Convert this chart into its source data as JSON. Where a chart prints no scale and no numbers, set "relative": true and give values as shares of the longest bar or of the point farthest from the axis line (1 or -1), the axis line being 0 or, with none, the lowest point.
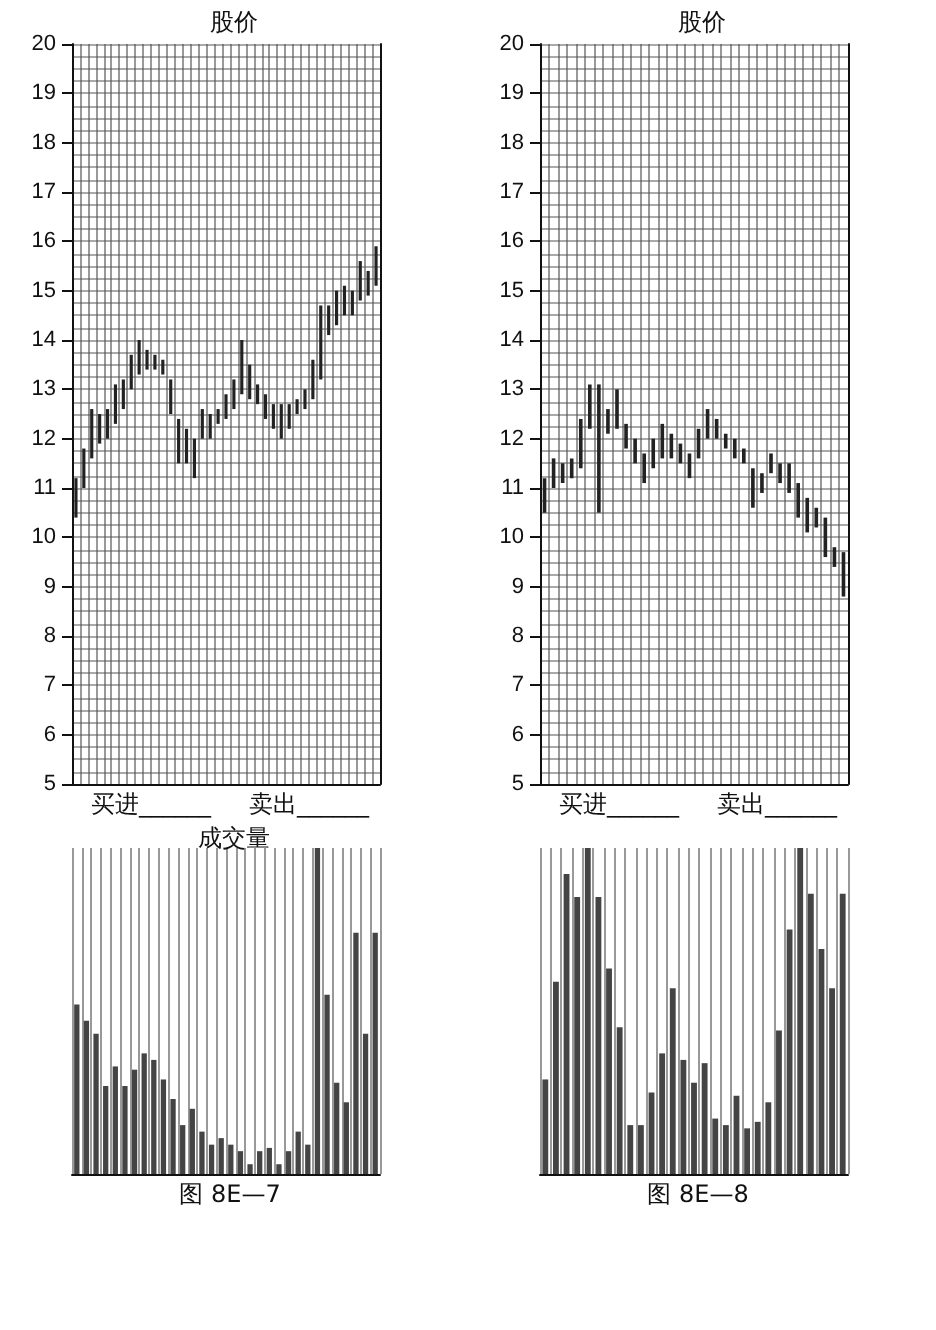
{
  "chart_data": [
    {
      "type": "bar",
      "title": "股价",
      "categories": [
        null,
        null,
        null,
        null,
        null,
        null,
        null,
        null,
        null,
        null,
        null,
        null,
        null,
        null,
        null,
        null,
        null,
        null,
        null,
        null,
        null,
        null,
        null,
        null,
        null,
        null,
        null,
        null,
        null,
        null,
        null,
        null,
        null,
        null,
        null,
        null,
        null,
        null,
        null
      ],
      "base": [
        10.4,
        11.0,
        11.6,
        11.9,
        12.0,
        12.3,
        12.6,
        13.0,
        13.3,
        13.4,
        13.4,
        13.3,
        12.5,
        11.5,
        11.5,
        11.2,
        12.0,
        12.0,
        12.3,
        12.4,
        12.6,
        12.9,
        12.8,
        12.7,
        12.4,
        12.2,
        12.0,
        12.2,
        12.5,
        12.6,
        12.8,
        13.2,
        14.1,
        14.3,
        14.5,
        14.5,
        14.8,
        14.9,
        15.1
      ],
      "values": [
        0.8,
        0.8,
        1.0,
        0.6,
        0.6,
        0.8,
        0.6,
        0.7,
        0.7,
        0.4,
        0.3,
        0.3,
        0.7,
        0.9,
        0.7,
        0.8,
        0.6,
        0.5,
        0.3,
        0.5,
        0.6,
        1.1,
        0.7,
        0.4,
        0.5,
        0.5,
        0.7,
        0.5,
        0.3,
        0.4,
        0.8,
        1.5,
        0.6,
        0.7,
        0.6,
        0.5,
        0.8,
        0.5,
        0.8
      ],
      "color": "#222222",
      "ylim": [
        5,
        20
      ],
      "yticks": [
        5,
        6,
        7,
        8,
        9,
        10,
        11,
        12,
        13,
        14,
        15,
        16,
        17,
        18,
        19,
        20
      ],
      "grid": true,
      "annotations": [
        "买进______",
        "卖出______"
      ]
    },
    {
      "type": "bar",
      "title": "股价",
      "categories": [
        null,
        null,
        null,
        null,
        null,
        null,
        null,
        null,
        null,
        null,
        null,
        null,
        null,
        null,
        null,
        null,
        null,
        null,
        null,
        null,
        null,
        null,
        null,
        null,
        null,
        null,
        null,
        null,
        null,
        null,
        null,
        null,
        null,
        null
      ],
      "base": [
        10.5,
        11.0,
        11.1,
        11.2,
        11.4,
        12.2,
        10.5,
        12.1,
        12.2,
        11.8,
        11.5,
        11.1,
        11.4,
        11.6,
        11.6,
        11.5,
        11.2,
        11.6,
        12.0,
        12.0,
        11.8,
        11.6,
        11.5,
        10.6,
        10.9,
        11.3,
        11.1,
        10.9,
        10.4,
        10.1,
        10.2,
        9.6,
        9.4,
        8.8
      ],
      "values": [
        0.7,
        0.6,
        0.4,
        0.4,
        1.0,
        0.9,
        2.6,
        0.5,
        0.8,
        0.5,
        0.5,
        0.6,
        0.6,
        0.7,
        0.5,
        0.4,
        0.5,
        0.6,
        0.6,
        0.4,
        0.3,
        0.4,
        0.3,
        0.8,
        0.4,
        0.4,
        0.4,
        0.6,
        0.7,
        0.7,
        0.4,
        0.8,
        0.4,
        0.9
      ],
      "color": "#222222",
      "ylim": [
        5,
        20
      ],
      "yticks": [
        5,
        6,
        7,
        8,
        9,
        10,
        11,
        12,
        13,
        14,
        15,
        16,
        17,
        18,
        19,
        20
      ],
      "grid": true,
      "annotations": [
        "买进______",
        "卖出______"
      ]
    },
    {
      "type": "bar",
      "title": "成交量",
      "relative": true,
      "categories": [
        null,
        null,
        null,
        null,
        null,
        null,
        null,
        null,
        null,
        null,
        null,
        null,
        null,
        null,
        null,
        null,
        null,
        null,
        null,
        null,
        null,
        null,
        null,
        null,
        null,
        null,
        null,
        null,
        null,
        null,
        null,
        null
      ],
      "values": [
        0.52,
        0.47,
        0.43,
        0.27,
        0.33,
        0.27,
        0.32,
        0.37,
        0.35,
        0.29,
        0.23,
        0.15,
        0.2,
        0.13,
        0.09,
        0.11,
        0.09,
        0.07,
        0.03,
        0.07,
        0.08,
        0.03,
        0.07,
        0.13,
        0.09,
        1.0,
        0.55,
        0.28,
        0.22,
        0.74,
        0.43,
        0.74
      ],
      "color": "#444444",
      "grid": "x",
      "annotations": [
        "图 8E—7"
      ]
    },
    {
      "type": "bar",
      "relative": true,
      "categories": [
        null,
        null,
        null,
        null,
        null,
        null,
        null,
        null,
        null,
        null,
        null,
        null,
        null,
        null,
        null,
        null,
        null,
        null,
        null,
        null,
        null,
        null,
        null,
        null,
        null,
        null,
        null,
        null,
        null
      ],
      "values": [
        0.29,
        0.59,
        0.92,
        0.85,
        1.0,
        0.85,
        0.63,
        0.45,
        0.15,
        0.15,
        0.25,
        0.37,
        0.57,
        0.35,
        0.28,
        0.34,
        0.17,
        0.15,
        0.24,
        0.14,
        0.16,
        0.22,
        0.44,
        0.75,
        1.0,
        0.86,
        0.69,
        0.57,
        0.86
      ],
      "color": "#444444",
      "grid": "x",
      "annotations": [
        "图 8E—8"
      ]
    }
  ]
}
